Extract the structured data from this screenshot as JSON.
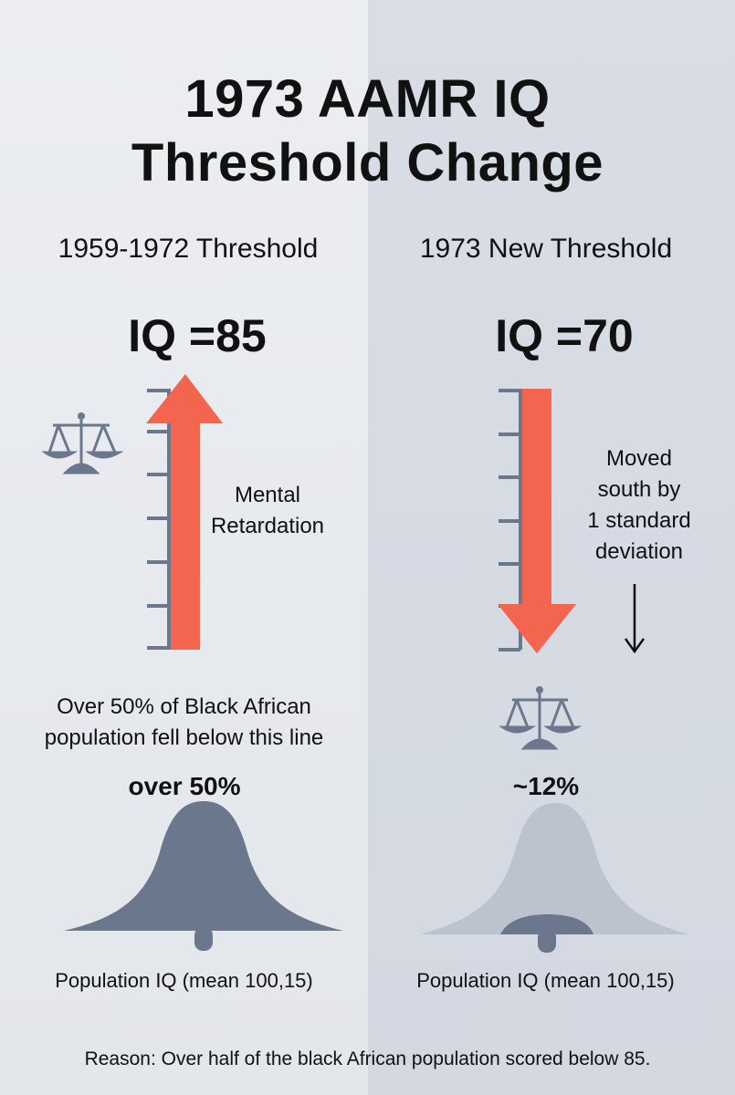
{
  "title": {
    "line1": "1973 AAMR IQ",
    "line2": "Threshold Change"
  },
  "left": {
    "heading": "1959-1972 Threshold",
    "iq_label": "IQ =85",
    "arrow_label_line1": "Mental",
    "arrow_label_line2": "Retardation",
    "note_line1": "Over 50% of Black African",
    "note_line2": "population fell below this line",
    "percent": "over 50%",
    "axis_label": "Population IQ (mean 100,15)",
    "icon": "scales-icon",
    "arrow_color": "#f4654f",
    "curve_color": "#6b778c"
  },
  "right": {
    "heading": "1973 New Threshold",
    "iq_label": "IQ =70",
    "arrow_label_line1": "Moved",
    "arrow_label_line2": "south by",
    "arrow_label_line3": "1 standard",
    "arrow_label_line4": "deviation",
    "percent": "~12%",
    "axis_label": "Population IQ (mean 100,15)",
    "icon": "scales-icon",
    "arrow_color": "#f4654f",
    "curve_color": "#bcc3cf",
    "curve_dark_color": "#6b778c"
  },
  "reason": "Reason: Over half of the black African population scored below 85."
}
